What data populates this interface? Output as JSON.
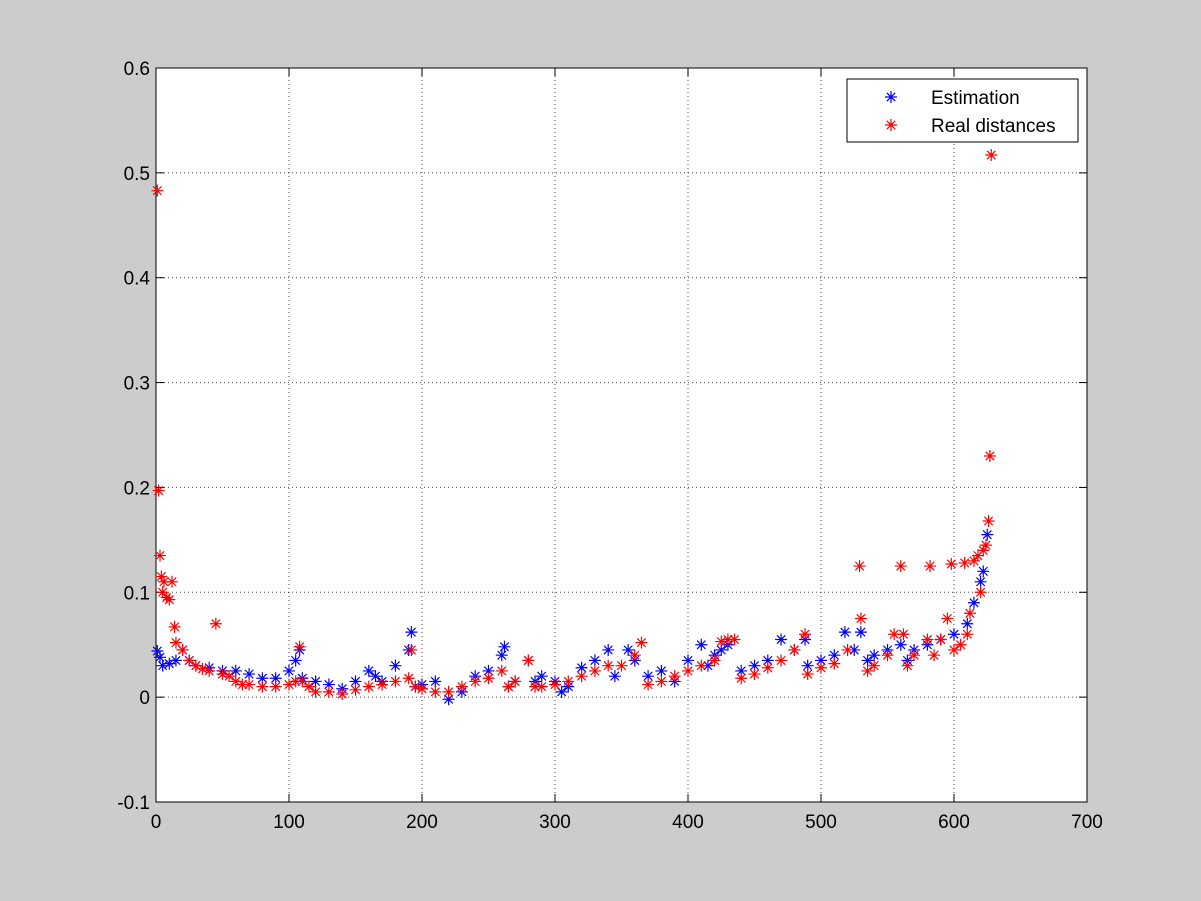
{
  "chart_data": {
    "type": "scatter",
    "xlim": [
      0,
      700
    ],
    "xticks": [
      0,
      100,
      200,
      300,
      400,
      500,
      600,
      700
    ],
    "ylim": [
      -0.1,
      0.6
    ],
    "yticks": [
      -0.1,
      0,
      0.1,
      0.2,
      0.3,
      0.4,
      0.5,
      0.6
    ],
    "grid": true,
    "legend": "upper right",
    "series": [
      {
        "name": "Estimation",
        "color": "#0000ff",
        "x": [
          1,
          3,
          5,
          10,
          15,
          20,
          25,
          30,
          40,
          50,
          60,
          70,
          80,
          90,
          100,
          105,
          108,
          110,
          120,
          130,
          140,
          150,
          160,
          165,
          170,
          180,
          190,
          192,
          195,
          200,
          210,
          220,
          230,
          240,
          250,
          260,
          262,
          265,
          270,
          280,
          285,
          290,
          300,
          305,
          310,
          320,
          330,
          340,
          345,
          355,
          360,
          370,
          380,
          390,
          400,
          410,
          415,
          420,
          425,
          430,
          440,
          450,
          460,
          470,
          480,
          488,
          490,
          500,
          510,
          518,
          525,
          530,
          535,
          540,
          550,
          560,
          565,
          570,
          580,
          590,
          600,
          610,
          615,
          620,
          622,
          625
        ],
        "values": [
          0.044,
          0.038,
          0.03,
          0.032,
          0.035,
          0.045,
          0.035,
          0.03,
          0.028,
          0.025,
          0.025,
          0.022,
          0.018,
          0.018,
          0.025,
          0.035,
          0.045,
          0.018,
          0.015,
          0.012,
          0.008,
          0.015,
          0.025,
          0.02,
          0.015,
          0.03,
          0.045,
          0.062,
          0.01,
          0.012,
          0.015,
          -0.002,
          0.005,
          0.02,
          0.025,
          0.04,
          0.048,
          0.01,
          0.015,
          0.035,
          0.015,
          0.02,
          0.015,
          0.005,
          0.01,
          0.028,
          0.035,
          0.045,
          0.02,
          0.045,
          0.035,
          0.02,
          0.025,
          0.015,
          0.035,
          0.05,
          0.03,
          0.04,
          0.045,
          0.05,
          0.025,
          0.03,
          0.035,
          0.055,
          0.045,
          0.055,
          0.03,
          0.035,
          0.04,
          0.062,
          0.045,
          0.062,
          0.035,
          0.04,
          0.045,
          0.05,
          0.035,
          0.045,
          0.05,
          0.055,
          0.06,
          0.07,
          0.09,
          0.11,
          0.12,
          0.155
        ]
      },
      {
        "name": "Real distances",
        "color": "#ff0000",
        "x": [
          1,
          2,
          3,
          4,
          5,
          6,
          8,
          10,
          12,
          14,
          15,
          20,
          25,
          30,
          35,
          40,
          45,
          50,
          55,
          60,
          65,
          70,
          80,
          90,
          100,
          105,
          108,
          110,
          115,
          120,
          130,
          140,
          150,
          160,
          170,
          180,
          190,
          192,
          195,
          200,
          210,
          220,
          230,
          240,
          250,
          260,
          265,
          270,
          280,
          285,
          290,
          300,
          310,
          320,
          330,
          340,
          350,
          360,
          365,
          370,
          380,
          390,
          400,
          410,
          420,
          425,
          430,
          435,
          440,
          450,
          460,
          470,
          480,
          488,
          490,
          500,
          510,
          520,
          529,
          530,
          535,
          540,
          550,
          555,
          560,
          562,
          565,
          570,
          580,
          582,
          585,
          590,
          595,
          598,
          600,
          605,
          608,
          610,
          612,
          615,
          618,
          620,
          622,
          624,
          626,
          627,
          628
        ],
        "values": [
          0.483,
          0.197,
          0.135,
          0.115,
          0.1,
          0.11,
          0.095,
          0.093,
          0.11,
          0.067,
          0.052,
          0.045,
          0.035,
          0.03,
          0.027,
          0.025,
          0.07,
          0.022,
          0.02,
          0.015,
          0.012,
          0.012,
          0.01,
          0.01,
          0.012,
          0.015,
          0.048,
          0.015,
          0.01,
          0.005,
          0.005,
          0.003,
          0.007,
          0.01,
          0.012,
          0.015,
          0.018,
          0.045,
          0.01,
          0.008,
          0.005,
          0.005,
          0.01,
          0.015,
          0.018,
          0.025,
          0.01,
          0.015,
          0.035,
          0.01,
          0.01,
          0.012,
          0.015,
          0.02,
          0.025,
          0.03,
          0.03,
          0.04,
          0.052,
          0.012,
          0.015,
          0.02,
          0.025,
          0.03,
          0.035,
          0.053,
          0.055,
          0.055,
          0.018,
          0.022,
          0.028,
          0.035,
          0.045,
          0.06,
          0.022,
          0.028,
          0.032,
          0.045,
          0.125,
          0.075,
          0.025,
          0.03,
          0.04,
          0.06,
          0.125,
          0.06,
          0.03,
          0.04,
          0.055,
          0.125,
          0.04,
          0.055,
          0.075,
          0.127,
          0.045,
          0.05,
          0.128,
          0.06,
          0.08,
          0.13,
          0.135,
          0.1,
          0.14,
          0.145,
          0.168,
          0.23,
          0.517
        ]
      }
    ]
  }
}
